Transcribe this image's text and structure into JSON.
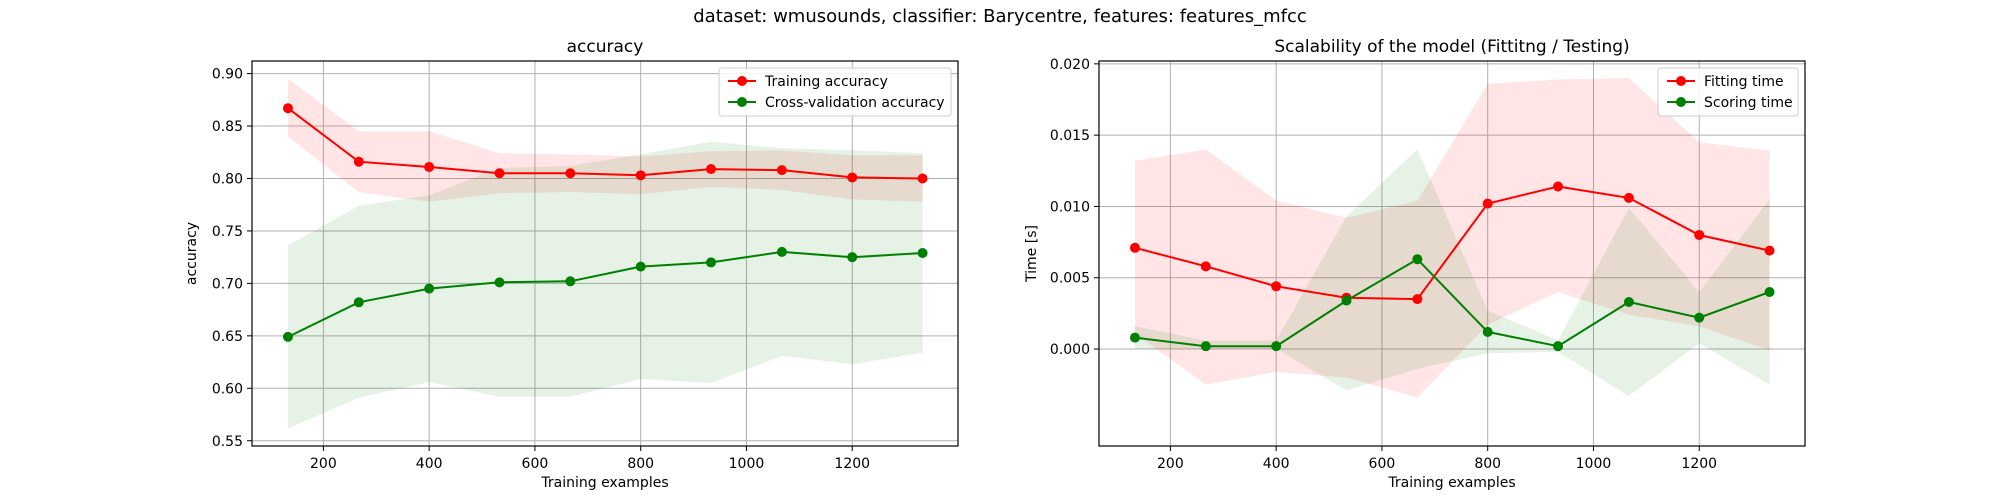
{
  "figure": {
    "suptitle": "dataset: wmusounds, classifier: Barycentre, features: features_mfcc"
  },
  "chart_data": [
    {
      "type": "line",
      "title": "accuracy",
      "xlabel": "Training examples",
      "ylabel": "accuracy",
      "xlim": [
        65,
        1400
      ],
      "ylim": [
        0.545,
        0.912
      ],
      "xticks": [
        200,
        400,
        600,
        800,
        1000,
        1200
      ],
      "yticks": [
        0.55,
        0.6,
        0.65,
        0.7,
        0.75,
        0.8,
        0.85,
        0.9
      ],
      "ytick_decimals": 2,
      "grid": true,
      "legend_position": "top-right",
      "x": [
        133,
        267,
        400,
        533,
        667,
        800,
        933,
        1067,
        1200,
        1333
      ],
      "series": [
        {
          "name": "Training accuracy",
          "color": "#ff0000",
          "band_color": "#ff0000",
          "values": [
            0.867,
            0.816,
            0.811,
            0.805,
            0.805,
            0.803,
            0.809,
            0.808,
            0.801,
            0.8
          ],
          "lower": [
            0.84,
            0.787,
            0.778,
            0.786,
            0.787,
            0.785,
            0.792,
            0.789,
            0.78,
            0.778
          ],
          "upper": [
            0.895,
            0.845,
            0.845,
            0.824,
            0.823,
            0.821,
            0.826,
            0.827,
            0.822,
            0.822
          ]
        },
        {
          "name": "Cross-validation accuracy",
          "color": "#008000",
          "band_color": "#008000",
          "values": [
            0.649,
            0.682,
            0.695,
            0.701,
            0.702,
            0.716,
            0.72,
            0.73,
            0.725,
            0.729
          ],
          "lower": [
            0.562,
            0.591,
            0.606,
            0.592,
            0.592,
            0.609,
            0.605,
            0.631,
            0.623,
            0.634
          ],
          "upper": [
            0.736,
            0.774,
            0.784,
            0.81,
            0.812,
            0.823,
            0.835,
            0.829,
            0.827,
            0.824
          ]
        }
      ]
    },
    {
      "type": "line",
      "title": "Scalability of the model (Fittitng / Testing)",
      "xlabel": "Training examples",
      "ylabel": "Time [s]",
      "xlim": [
        65,
        1400
      ],
      "ylim": [
        -0.0068,
        0.0202
      ],
      "xticks": [
        200,
        400,
        600,
        800,
        1000,
        1200
      ],
      "yticks": [
        0.0,
        0.005,
        0.01,
        0.015,
        0.02
      ],
      "ytick_decimals": 3,
      "grid": true,
      "legend_position": "top-right",
      "x": [
        133,
        267,
        400,
        533,
        667,
        800,
        933,
        1067,
        1200,
        1333
      ],
      "series": [
        {
          "name": "Fitting time",
          "color": "#ff0000",
          "band_color": "#ff0000",
          "values": [
            0.0071,
            0.0058,
            0.0044,
            0.0036,
            0.0035,
            0.0102,
            0.0114,
            0.0106,
            0.008,
            0.0069
          ],
          "lower": [
            0.0011,
            -0.0025,
            -0.0016,
            -0.002,
            -0.0034,
            0.0017,
            0.004,
            0.0024,
            0.0016,
            -0.0001
          ],
          "upper": [
            0.0132,
            0.014,
            0.0104,
            0.0092,
            0.0104,
            0.0186,
            0.0189,
            0.019,
            0.0145,
            0.0139
          ]
        },
        {
          "name": "Scoring time",
          "color": "#008000",
          "band_color": "#008000",
          "values": [
            0.0008,
            0.0002,
            0.0002,
            0.0034,
            0.0063,
            0.0012,
            0.0002,
            0.0033,
            0.0022,
            0.004
          ],
          "lower": [
            0.0,
            0.0,
            0.0,
            -0.0029,
            -0.0014,
            -0.0003,
            -0.0002,
            -0.0033,
            0.0004,
            -0.0025
          ],
          "upper": [
            0.0016,
            0.0006,
            0.0006,
            0.0093,
            0.014,
            0.0027,
            0.0006,
            0.0099,
            0.004,
            0.0105
          ]
        }
      ]
    }
  ]
}
